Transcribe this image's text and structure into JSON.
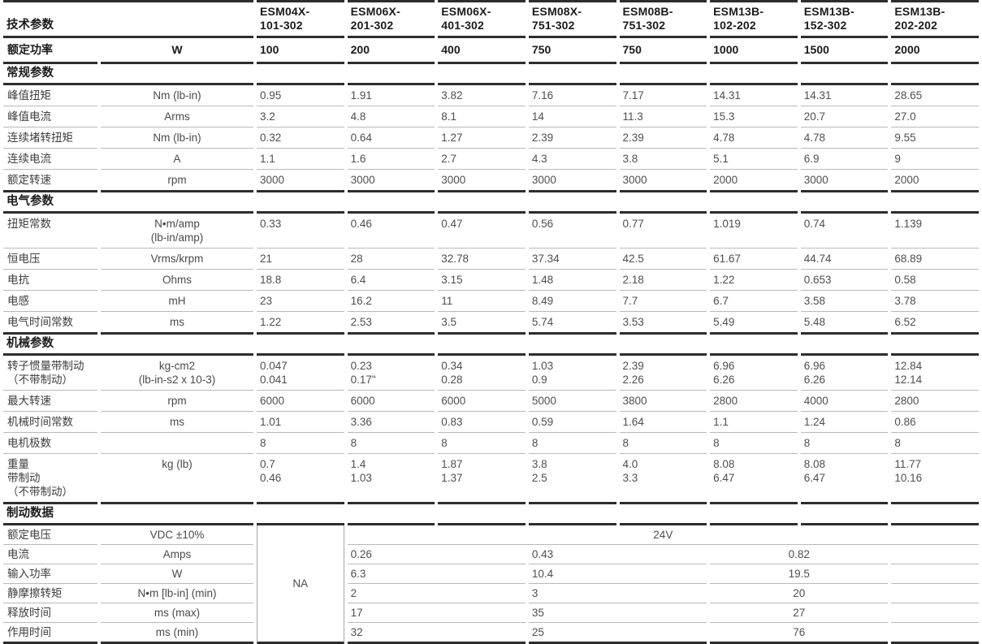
{
  "page": {
    "title_corner": "技术参数"
  },
  "models": [
    [
      "ESM04X-",
      "101-302"
    ],
    [
      "ESM06X-",
      "201-302"
    ],
    [
      "ESM06X-",
      "401-302"
    ],
    [
      "ESM08X-",
      "751-302"
    ],
    [
      "ESM08B-",
      "751-302"
    ],
    [
      "ESM13B-",
      "102-202"
    ],
    [
      "ESM13B-",
      "152-302"
    ],
    [
      "ESM13B-",
      "202-202"
    ]
  ],
  "power_row": {
    "label": "额定功率",
    "unit": "W",
    "values": [
      "100",
      "200",
      "400",
      "750",
      "750",
      "1000",
      "1500",
      "2000"
    ]
  },
  "sections": [
    {
      "title": "常规参数",
      "rows": [
        {
          "label": [
            "峰值扭矩"
          ],
          "unit": [
            "Nm (lb-in)"
          ],
          "values": [
            "0.95",
            "1.91",
            "3.82",
            "7.16",
            "7.17",
            "14.31",
            "14.31",
            "28.65"
          ]
        },
        {
          "label": [
            "峰值电流"
          ],
          "unit": [
            "Arms"
          ],
          "values": [
            "3.2",
            "4.8",
            "8.1",
            "14",
            "11.3",
            "15.3",
            "20.7",
            "27.0"
          ]
        },
        {
          "label": [
            "连续堵转扭矩"
          ],
          "unit": [
            "Nm (lb-in)"
          ],
          "values": [
            "0.32",
            "0.64",
            "1.27",
            "2.39",
            "2.39",
            "4.78",
            "4.78",
            "9.55"
          ]
        },
        {
          "label": [
            "连续电流"
          ],
          "unit": [
            "A"
          ],
          "values": [
            "1.1",
            "1.6",
            "2.7",
            "4.3",
            "3.8",
            "5.1",
            "6.9",
            "9"
          ]
        },
        {
          "label": [
            "额定转速"
          ],
          "unit": [
            "rpm"
          ],
          "values": [
            "3000",
            "3000",
            "3000",
            "3000",
            "3000",
            "2000",
            "3000",
            "2000"
          ]
        }
      ]
    },
    {
      "title": "电气参数",
      "rows": [
        {
          "label": [
            "扭矩常数"
          ],
          "unit": [
            "N•m/amp",
            "(lb-in/amp)"
          ],
          "values": [
            "0.33",
            "0.46",
            "0.47",
            "0.56",
            "0.77",
            "1.019",
            "0.74",
            "1.139"
          ]
        },
        {
          "label": [
            "恒电压"
          ],
          "unit": [
            "Vrms/krpm"
          ],
          "values": [
            "21",
            "28",
            "32.78",
            "37.34",
            "42.5",
            "61.67",
            "44.74",
            "68.89"
          ]
        },
        {
          "label": [
            "电抗"
          ],
          "unit": [
            "Ohms"
          ],
          "values": [
            "18.8",
            "6.4",
            "3.15",
            "1.48",
            "2.18",
            "1.22",
            "0.653",
            "0.58"
          ]
        },
        {
          "label": [
            "电感"
          ],
          "unit": [
            "mH"
          ],
          "values": [
            "23",
            "16.2",
            "11",
            "8.49",
            "7.7",
            "6.7",
            "3.58",
            "3.78"
          ]
        },
        {
          "label": [
            "电气时间常数"
          ],
          "unit": [
            "ms"
          ],
          "values": [
            "1.22",
            "2.53",
            "3.5",
            "5.74",
            "3.53",
            "5.49",
            "5.48",
            "6.52"
          ]
        }
      ]
    },
    {
      "title": "机械参数",
      "rows": [
        {
          "label": [
            "转子惯量带制动",
            "（不带制动）"
          ],
          "unit": [
            "kg-cm2",
            "(lb-in-s2 x 10-3)"
          ],
          "values": [
            [
              "0.047",
              "0.041"
            ],
            [
              "0.23",
              "0.17\""
            ],
            [
              "0.34",
              "0.28"
            ],
            [
              "1.03",
              "0.9"
            ],
            [
              "2.39",
              "2.26"
            ],
            [
              "6.96",
              "6.26"
            ],
            [
              "6.96",
              "6.26"
            ],
            [
              "12.84",
              "12.14"
            ]
          ]
        },
        {
          "label": [
            "最大转速"
          ],
          "unit": [
            "rpm"
          ],
          "values": [
            "6000",
            "6000",
            "6000",
            "5000",
            "3800",
            "2800",
            "4000",
            "2800"
          ]
        },
        {
          "label": [
            "机械时间常数"
          ],
          "unit": [
            "ms"
          ],
          "values": [
            "1.01",
            "3.36",
            "0.83",
            "0.59",
            "1.64",
            "1.1",
            "1.24",
            "0.86"
          ]
        },
        {
          "label": [
            "电机极数"
          ],
          "unit": [
            ""
          ],
          "values": [
            "8",
            "8",
            "8",
            "8",
            "8",
            "8",
            "8",
            "8"
          ]
        },
        {
          "label": [
            "重量",
            "带制动",
            "（不带制动）"
          ],
          "unit": [
            "kg (lb)"
          ],
          "values": [
            [
              "0.7",
              "0.46"
            ],
            [
              "1.4",
              "1.03"
            ],
            [
              "1.87",
              "1.37"
            ],
            [
              "3.8",
              "2.5"
            ],
            [
              "4.0",
              "3.3"
            ],
            [
              "8.08",
              "6.47"
            ],
            [
              "8.08",
              "6.47"
            ],
            [
              "11.77",
              "10.16"
            ]
          ]
        }
      ]
    }
  ],
  "brake": {
    "title": "制动数据",
    "na": "NA",
    "voltage_row": {
      "label": "额定电压",
      "unit": "VDC ±10%",
      "value": "24V"
    },
    "rows": [
      {
        "label": "电流",
        "unit": "Amps",
        "values": [
          "0.26",
          "0.43",
          "0.82"
        ]
      },
      {
        "label": "输入功率",
        "unit": "W",
        "values": [
          "6.3",
          "10.4",
          "19.5"
        ]
      },
      {
        "label": "静摩擦转矩",
        "unit": "N•m [lb-in] (min)",
        "values": [
          "2",
          "3",
          "20"
        ]
      },
      {
        "label": "释放时间",
        "unit": "ms (max)",
        "values": [
          "17",
          "35",
          "27"
        ]
      },
      {
        "label": "作用时间",
        "unit": "ms (min)",
        "values": [
          "32",
          "25",
          "76"
        ]
      }
    ]
  }
}
